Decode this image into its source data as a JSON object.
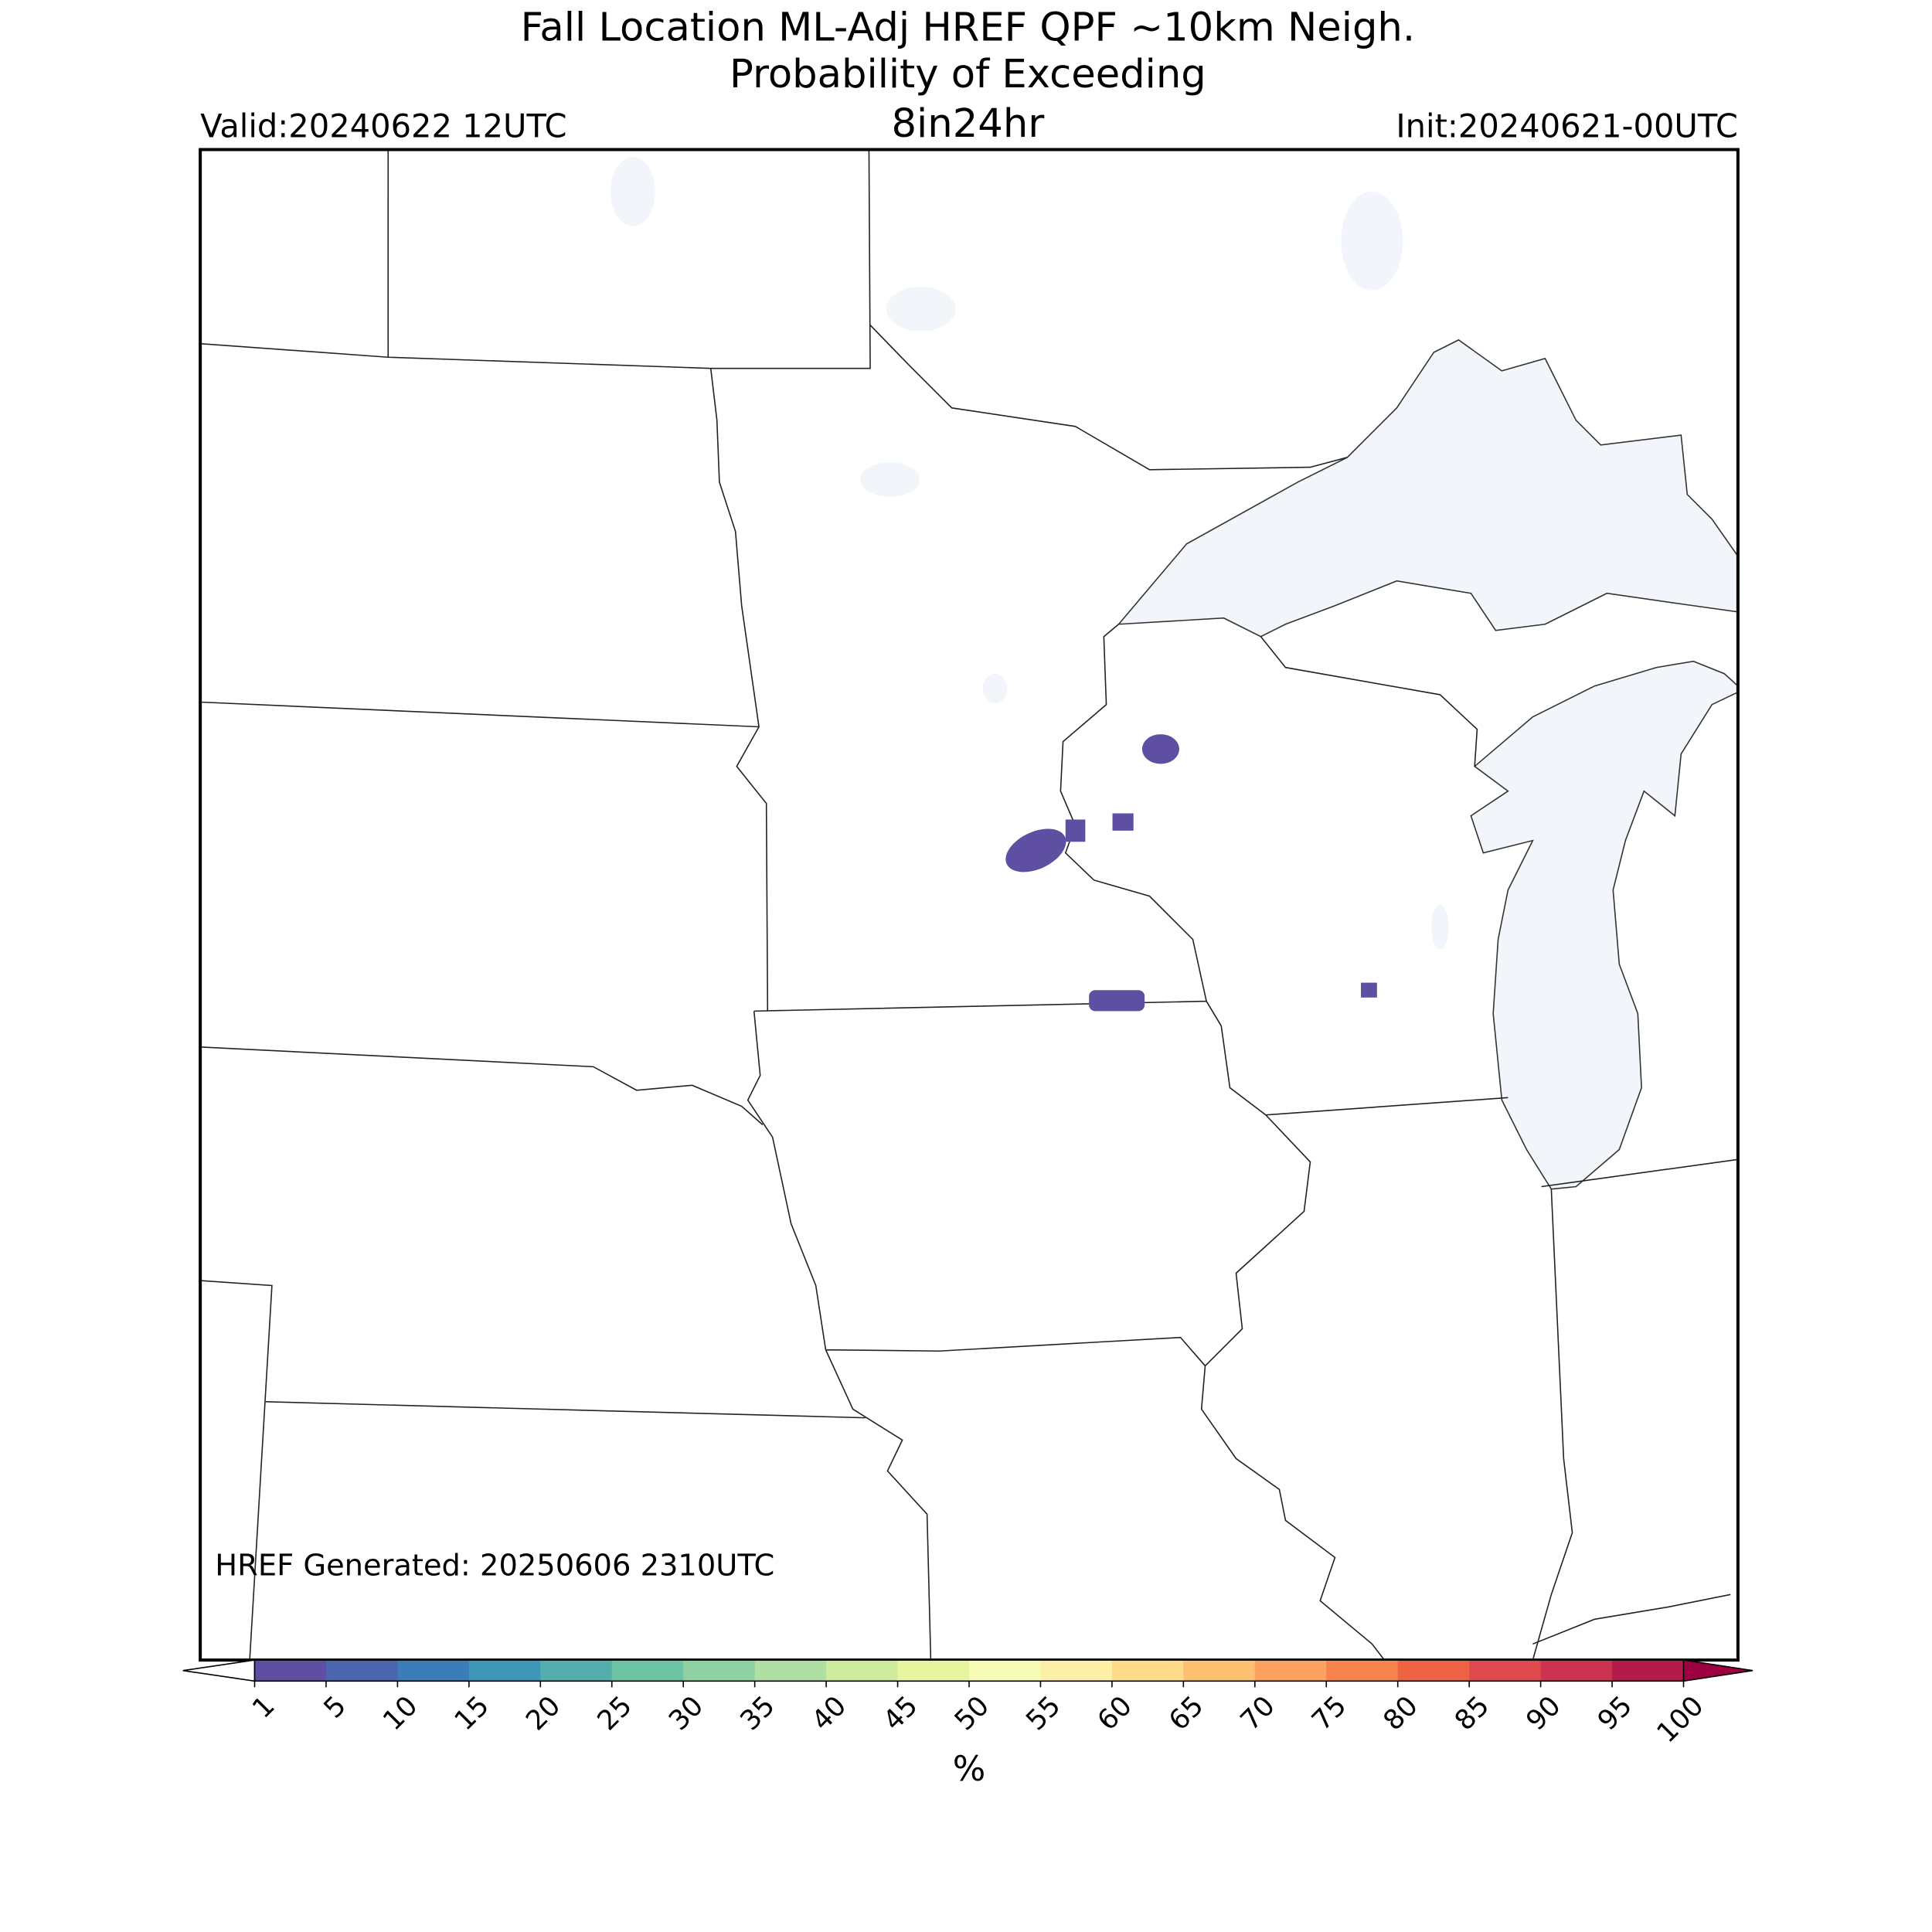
{
  "header": {
    "title": "Fall Location ML-Adj HREF QPF ~10km Neigh.",
    "subtitle": "Probability of Exceeding",
    "threshold": "8in24hr",
    "valid": "Valid:20240622 12UTC",
    "init": "Init:20240621-00UTC"
  },
  "annotation": "HREF Generated: 20250606 2310UTC",
  "colorbar": {
    "label": "%",
    "ticks": [
      1,
      5,
      10,
      15,
      20,
      25,
      30,
      35,
      40,
      45,
      50,
      55,
      60,
      65,
      70,
      75,
      80,
      85,
      90,
      95,
      100
    ],
    "colors": [
      "#5e4fa2",
      "#4b65ae",
      "#3a7db8",
      "#3f97b7",
      "#54aead",
      "#6dc4a5",
      "#8ed2a4",
      "#b0dfa3",
      "#cfec9d",
      "#e6f59e",
      "#f7fcb4",
      "#fdf0a6",
      "#fedb88",
      "#fdc171",
      "#fca15f",
      "#f7834d",
      "#ee6344",
      "#e04a4e",
      "#cc3351",
      "#b31b4b"
    ],
    "under_color": "#ffffff",
    "over_color": "#9e0142"
  }
}
